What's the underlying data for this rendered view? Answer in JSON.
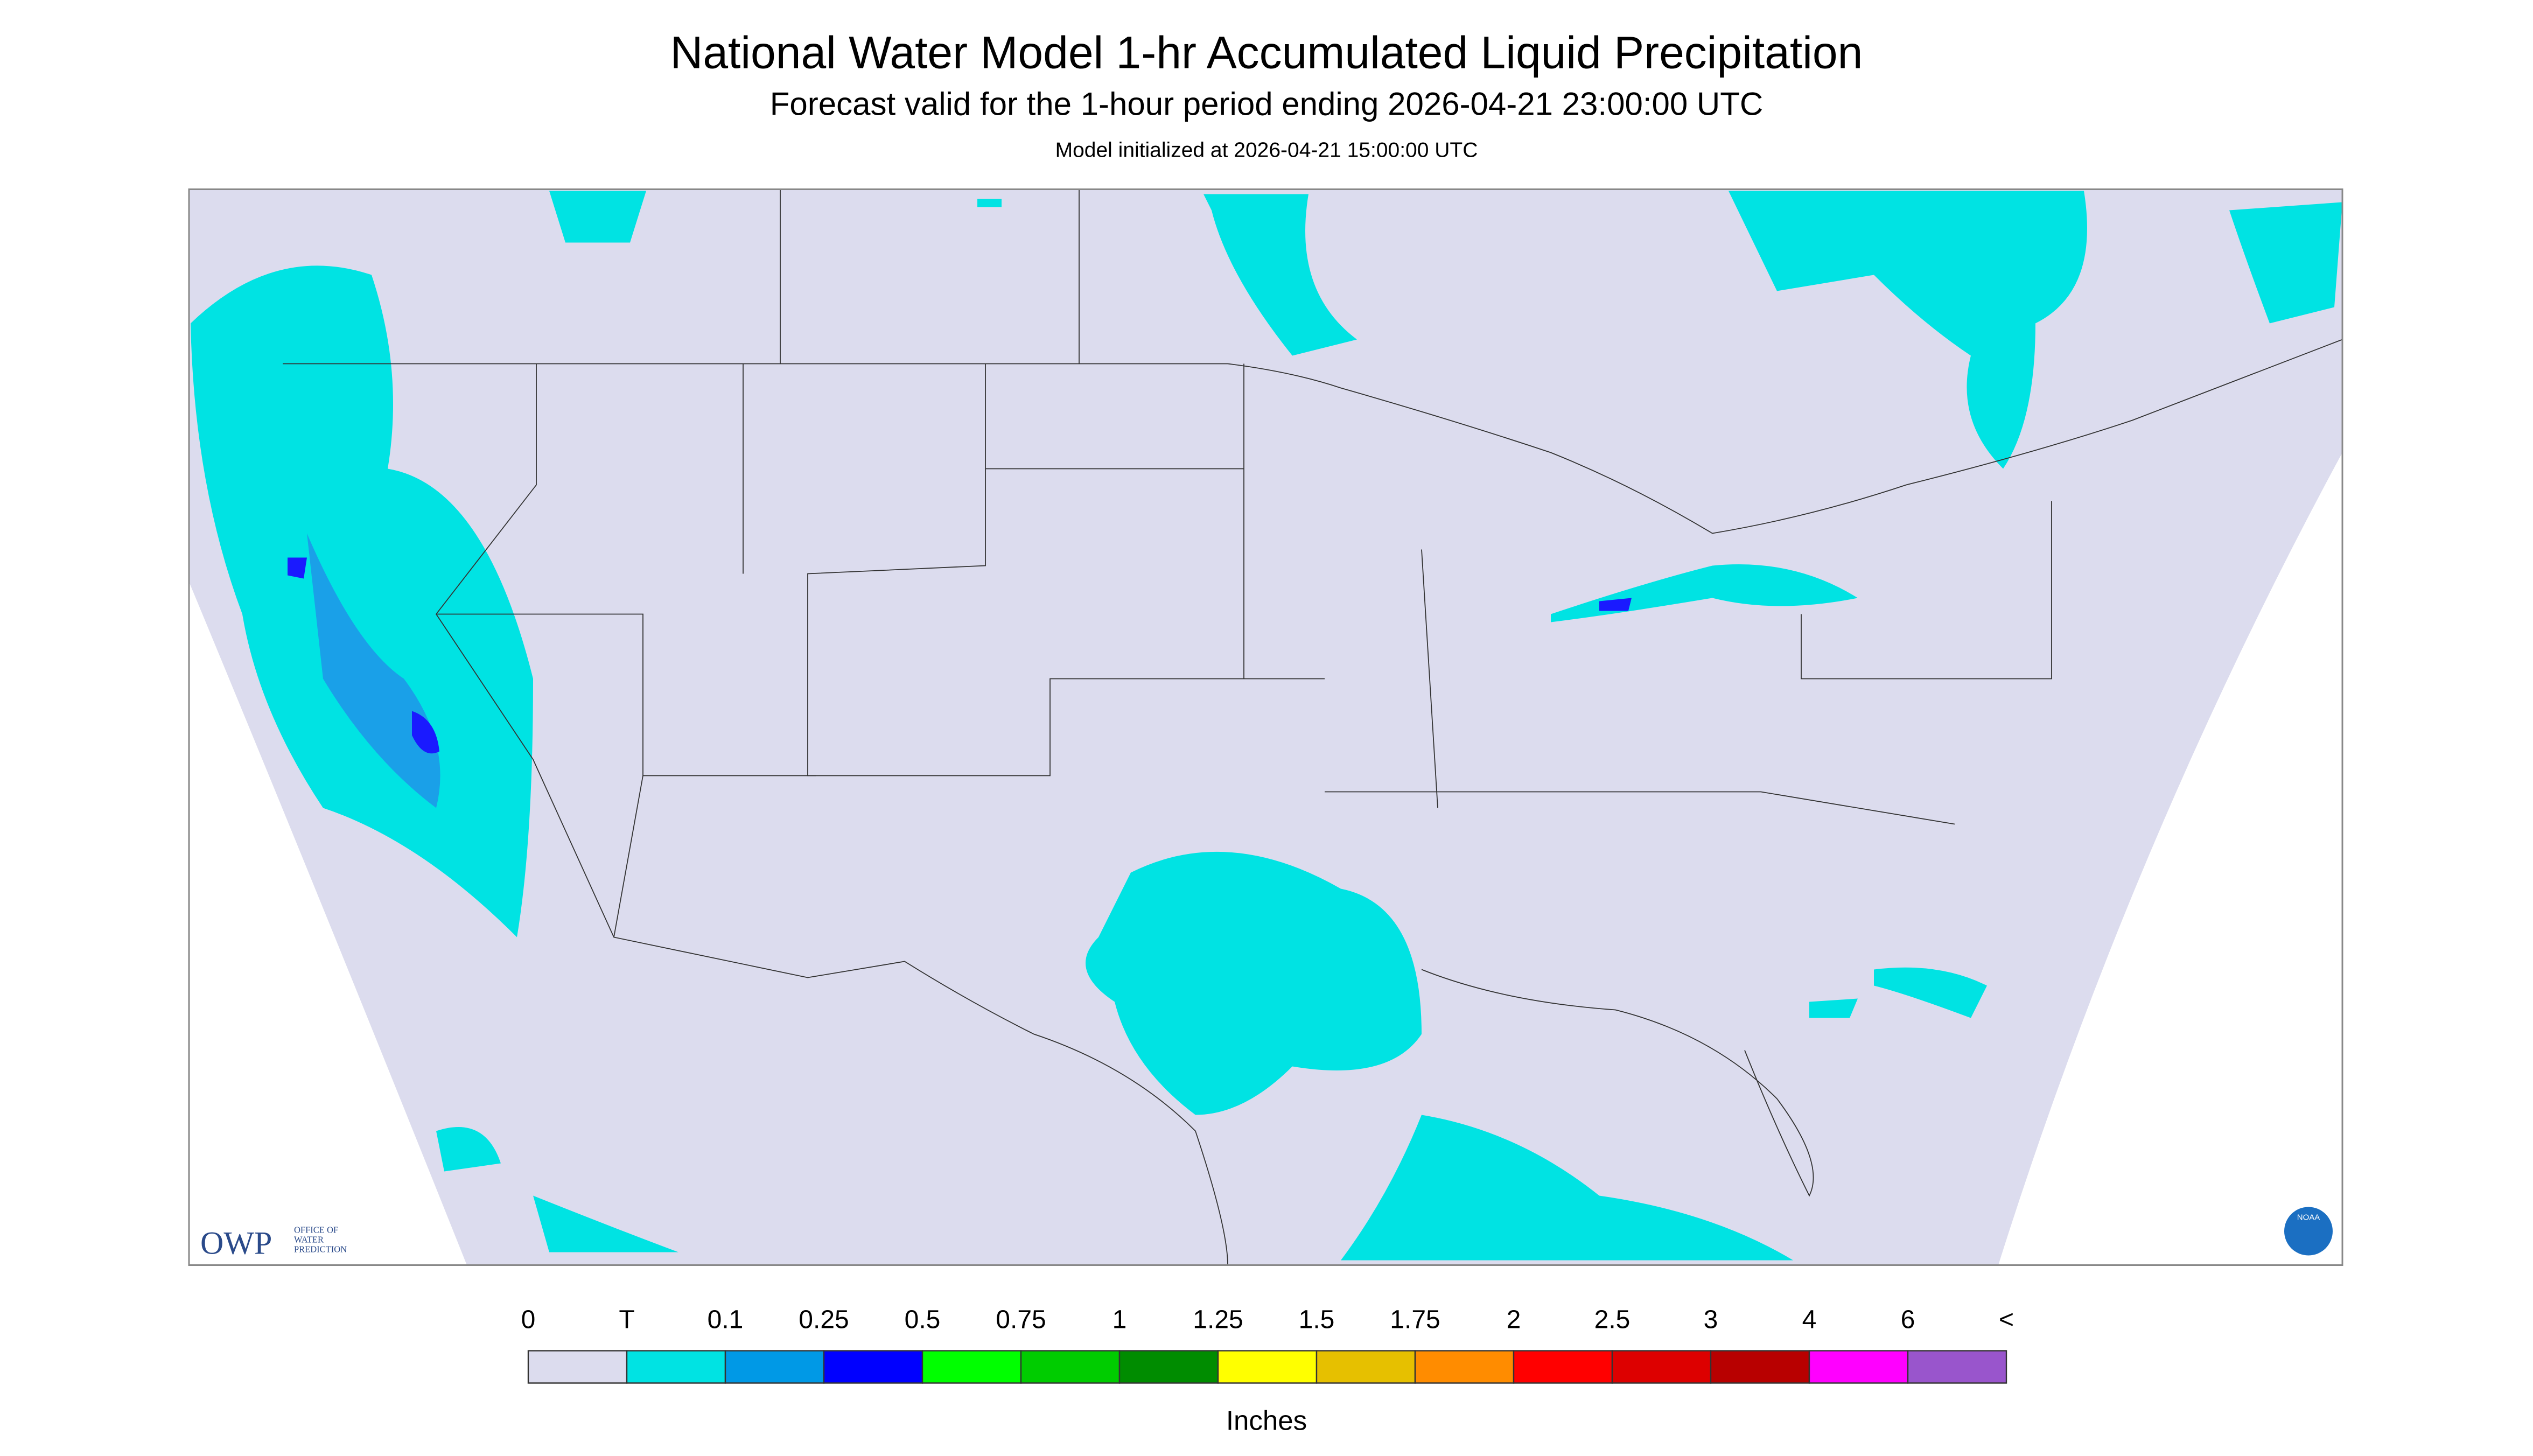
{
  "header": {
    "title": "National Water Model 1-hr Accumulated Liquid Precipitation",
    "subtitle": "Forecast valid for the 1-hour period ending 2026-04-21 23:00:00 UTC",
    "init": "Model initialized at 2026-04-21 15:00:00 UTC"
  },
  "legend": {
    "labels": [
      "0",
      "T",
      "0.1",
      "0.25",
      "0.5",
      "0.75",
      "1",
      "1.25",
      "1.5",
      "1.75",
      "2",
      "2.5",
      "3",
      "4",
      "6",
      "<"
    ],
    "colors": [
      "#dcdcee",
      "#00e3e3",
      "#0099e6",
      "#0000ff",
      "#00ff00",
      "#00cc00",
      "#008c00",
      "#ffff00",
      "#e6c000",
      "#ff8c00",
      "#ff0000",
      "#dd0000",
      "#b80000",
      "#ff00ff",
      "#9955cc"
    ],
    "unit": "Inches"
  },
  "logos": {
    "owp": "OWP",
    "owp_lines": [
      "OFFICE OF",
      "WATER",
      "PREDICTION"
    ],
    "noaa": "NOAA"
  }
}
